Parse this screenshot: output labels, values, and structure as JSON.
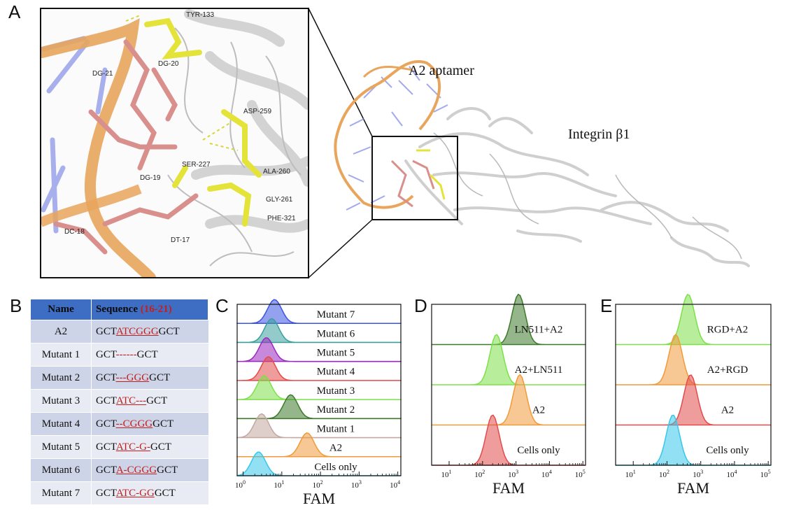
{
  "panel_labels": [
    "A",
    "B",
    "C",
    "D",
    "E"
  ],
  "panelA": {
    "aptamer_label": "A2 aptamer",
    "integrin_label": "Integrin β1",
    "residues": [
      "TYR-133",
      "DG-20",
      "DG-21",
      "ASP-259",
      "SER-227",
      "DG-19",
      "ALA-260",
      "GLY-261",
      "PHE-321",
      "DC-18",
      "DT-17"
    ],
    "colors": {
      "dna": "#e8a55c",
      "nucleotide": "#d98f8c",
      "residue": "#e4e33a",
      "protein": "#d8d8d8"
    }
  },
  "panelB": {
    "header_name": "Name",
    "header_sequence": "Sequence",
    "header_range": "(16-21)",
    "rows": [
      {
        "name": "A2",
        "prefix": "GCT",
        "mid": "ATCGGG",
        "suffix": "GCT"
      },
      {
        "name": "Mutant 1",
        "prefix": "GCT",
        "mid": "------",
        "suffix": "GCT"
      },
      {
        "name": "Mutant 2",
        "prefix": "GCT",
        "mid": "---GGG",
        "suffix": "GCT"
      },
      {
        "name": "Mutant 3",
        "prefix": "GCT",
        "mid": "ATC---",
        "suffix": "GCT"
      },
      {
        "name": "Mutant 4",
        "prefix": "GCT",
        "mid": "--CGGG",
        "suffix": "GCT"
      },
      {
        "name": "Mutant 5",
        "prefix": "GCT",
        "mid": "ATC-G-",
        "suffix": "GCT"
      },
      {
        "name": "Mutant 6",
        "prefix": "GCT",
        "mid": "A-CGGG",
        "suffix": "GCT"
      },
      {
        "name": "Mutant 7",
        "prefix": "GCT",
        "mid": "ATC-GG",
        "suffix": "GCT"
      }
    ]
  },
  "chart_data": [
    {
      "type": "area",
      "panel": "C",
      "xlabel": "FAM",
      "x_scale": "log",
      "xlim": [
        0.7,
        12000
      ],
      "ticks": [
        "10^0",
        "10^1",
        "10^2",
        "10^3",
        "10^4"
      ],
      "series": [
        {
          "name": "Mutant 7",
          "peak": 6.5,
          "color": "#3c54e0"
        },
        {
          "name": "Mutant 6",
          "peak": 5.5,
          "color": "#3a9e9e"
        },
        {
          "name": "Mutant 5",
          "peak": 4.0,
          "color": "#9a28c0"
        },
        {
          "name": "Mutant 4",
          "peak": 4.5,
          "color": "#e24b4b"
        },
        {
          "name": "Mutant 3",
          "peak": 3.5,
          "color": "#7de049"
        },
        {
          "name": "Mutant 2",
          "peak": 17,
          "color": "#3c7a2a"
        },
        {
          "name": "Mutant 1",
          "peak": 3.0,
          "color": "#c2a8a0"
        },
        {
          "name": "A2",
          "peak": 45,
          "color": "#f09a3a"
        },
        {
          "name": "Cells only",
          "peak": 2.5,
          "color": "#39c6ea"
        }
      ]
    },
    {
      "type": "area",
      "panel": "D",
      "xlabel": "FAM",
      "x_scale": "log",
      "xlim": [
        3,
        120000
      ],
      "ticks": [
        "10^1",
        "10^2",
        "10^3",
        "10^4",
        "10^5"
      ],
      "series": [
        {
          "name": "LN511+A2",
          "peak": 1200,
          "color": "#3c7a2a"
        },
        {
          "name": "A2+LN511",
          "peak": 260,
          "color": "#7de049"
        },
        {
          "name": "A2",
          "peak": 1300,
          "color": "#f09a3a"
        },
        {
          "name": "Cells only",
          "peak": 200,
          "color": "#e24b4b"
        }
      ]
    },
    {
      "type": "area",
      "panel": "E",
      "xlabel": "FAM",
      "x_scale": "log",
      "xlim": [
        3,
        120000
      ],
      "ticks": [
        "10^1",
        "10^2",
        "10^3",
        "10^4",
        "10^5"
      ],
      "series": [
        {
          "name": "RGD+A2",
          "peak": 420,
          "color": "#7de049"
        },
        {
          "name": "A2+RGD",
          "peak": 180,
          "color": "#f09a3a"
        },
        {
          "name": "A2",
          "peak": 500,
          "color": "#e24b4b"
        },
        {
          "name": "Cells only",
          "peak": 150,
          "color": "#39c6ea"
        }
      ]
    }
  ]
}
